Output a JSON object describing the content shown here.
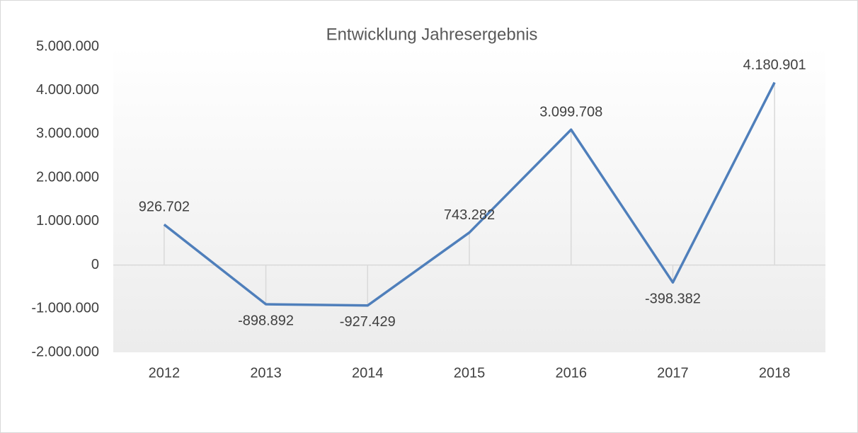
{
  "chart_data": {
    "type": "line",
    "title": "Entwicklung Jahresergebnis",
    "categories": [
      "2012",
      "2013",
      "2014",
      "2015",
      "2016",
      "2017",
      "2018"
    ],
    "series": [
      {
        "name": "Jahresergebnis",
        "color": "#4f7fbb",
        "values": [
          926702,
          -898892,
          -927429,
          743282,
          3099708,
          -398382,
          4180901
        ],
        "value_labels": [
          "926.702",
          "-898.892",
          "-927.429",
          "743.282",
          "3.099.708",
          "-398.382",
          "4.180.901"
        ]
      }
    ],
    "ylim": [
      -2000000,
      5000000
    ],
    "yticks": [
      {
        "value": -2000000,
        "label": "-2.000.000"
      },
      {
        "value": -1000000,
        "label": "-1.000.000"
      },
      0,
      {
        "value": 1000000,
        "label": "1.000.000"
      },
      {
        "value": 2000000,
        "label": "2.000.000"
      },
      {
        "value": 3000000,
        "label": "3.000.000"
      },
      {
        "value": 4000000,
        "label": "4.000.000"
      },
      {
        "value": 5000000,
        "label": "5.000.000"
      }
    ],
    "grid": false,
    "drop_lines": true
  }
}
